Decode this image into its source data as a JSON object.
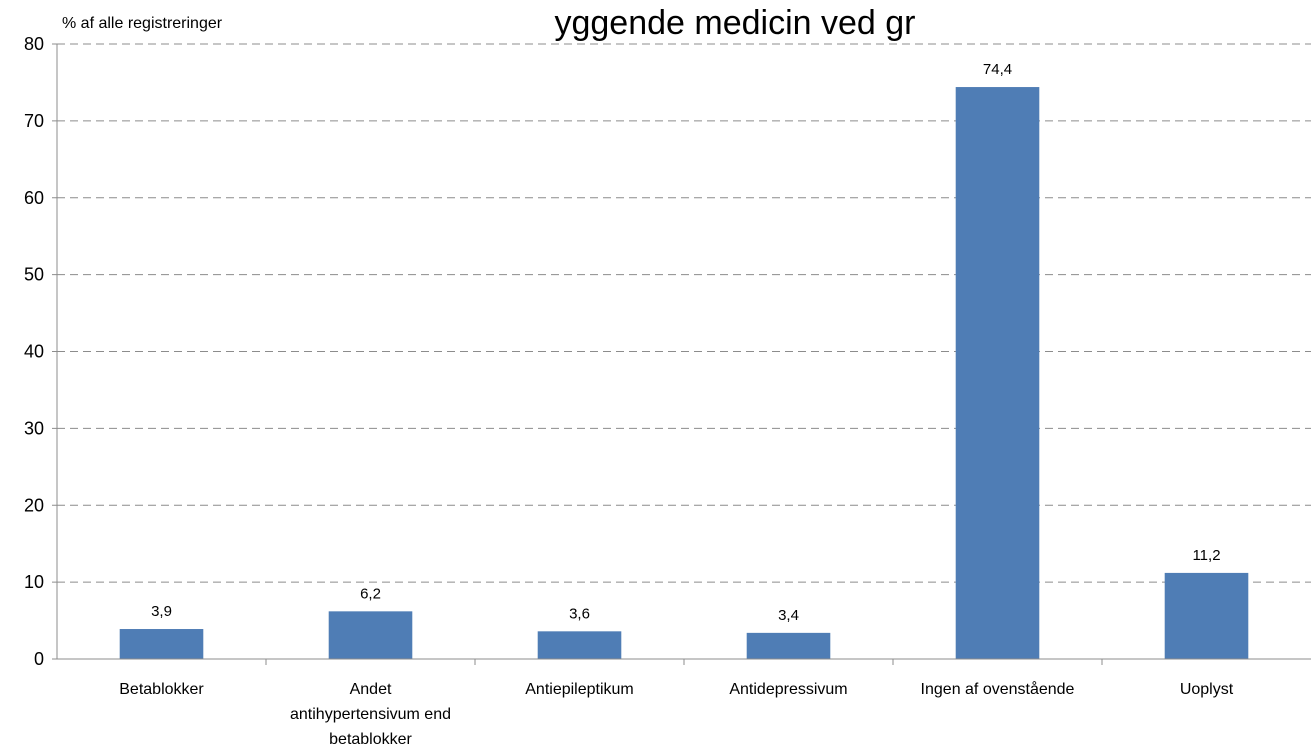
{
  "chart_data": {
    "type": "bar",
    "title": "yggende medicin ved gr",
    "ylabel": "% af alle registreringer",
    "xlabel": "",
    "ylim": [
      0,
      80
    ],
    "y_ticks": [
      0,
      10,
      20,
      30,
      40,
      50,
      60,
      70,
      80
    ],
    "grid": true,
    "categories": [
      [
        "Betablokker"
      ],
      [
        "Andet",
        "antihypertensivum end",
        "betablokker"
      ],
      [
        "Antiepileptikum"
      ],
      [
        "Antidepressivum"
      ],
      [
        "Ingen af ovenstående"
      ],
      [
        "Uoplyst"
      ]
    ],
    "values": [
      3.9,
      6.2,
      3.6,
      3.4,
      74.4,
      11.2
    ],
    "value_labels": [
      "3,9",
      "6,2",
      "3,6",
      "3,4",
      "74,4",
      "11,2"
    ],
    "bar_color": "#4f7db5",
    "grid_color": "#8c8c8c"
  }
}
